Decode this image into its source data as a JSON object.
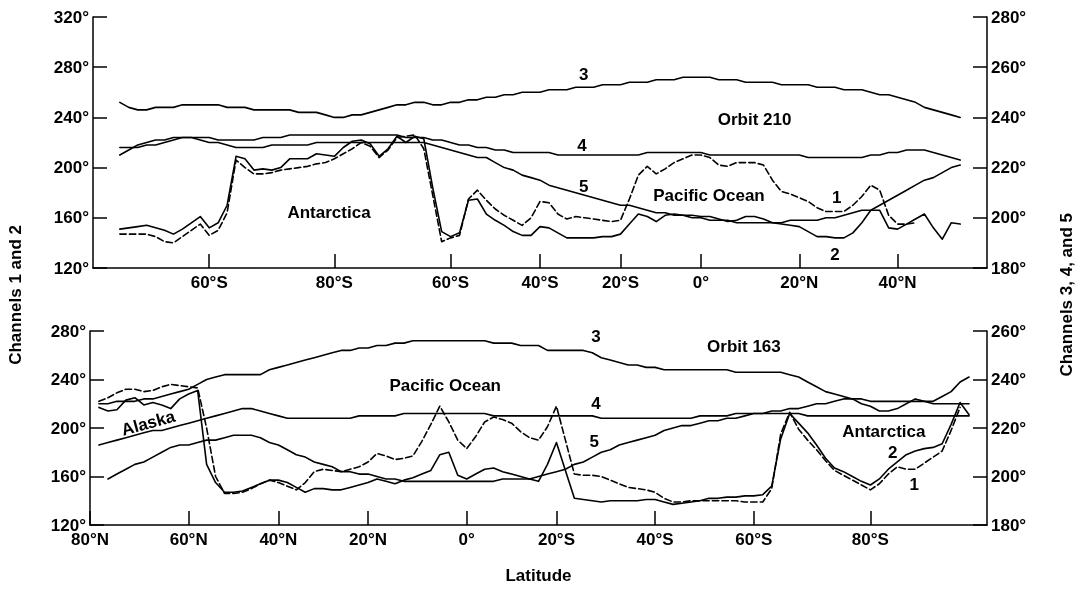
{
  "chart_data": [
    {
      "type": "line",
      "ylabel": "Channels 1 and 2",
      "y2label": "Channels 3, 4, and 5",
      "marker": "none",
      "grid": false,
      "categories": [
        null,
        null,
        null,
        null,
        null,
        null,
        null,
        null,
        null,
        null,
        null,
        null,
        null,
        "60°S",
        null,
        null,
        null,
        null,
        null,
        null,
        null,
        null,
        null,
        null,
        null,
        null,
        null,
        "80°S",
        null,
        null,
        null,
        null,
        null,
        null,
        null,
        null,
        null,
        null,
        null,
        null,
        "60°S",
        null,
        null,
        null,
        null,
        null,
        null,
        null,
        null,
        null,
        "40°S",
        null,
        null,
        null,
        null,
        null,
        null,
        null,
        null,
        "20°S",
        null,
        null,
        null,
        null,
        null,
        null,
        null,
        null,
        "0°",
        null,
        null,
        null,
        null,
        null,
        null,
        null,
        null,
        null,
        null,
        "20°N",
        null,
        null,
        null,
        null,
        null,
        null,
        null,
        null,
        null,
        null,
        "40°N",
        null,
        null,
        null,
        null,
        null,
        null,
        null,
        null,
        null,
        null
      ],
      "ylim": [
        120,
        320
      ],
      "yticks": [
        {
          "value": 120,
          "label": "120°"
        },
        {
          "value": 160,
          "label": "160°"
        },
        {
          "value": 200,
          "label": "200°"
        },
        {
          "value": 240,
          "label": "240°"
        },
        {
          "value": 280,
          "label": "280°"
        },
        {
          "value": 320,
          "label": "320°"
        }
      ],
      "y2lim": [
        180,
        280
      ],
      "y2ticks": [
        {
          "value": 180,
          "label": "180°"
        },
        {
          "value": 200,
          "label": "200°"
        },
        {
          "value": 220,
          "label": "220°"
        },
        {
          "value": 240,
          "label": "240°"
        },
        {
          "value": 260,
          "label": "260°"
        },
        {
          "value": 280,
          "label": "280°"
        }
      ],
      "series": [
        {
          "color": "#000000",
          "line_style": "dashed",
          "values": [
            null,
            null,
            null,
            147,
            147,
            147,
            147,
            145,
            141,
            140,
            145,
            150,
            155,
            146,
            150,
            164,
            206,
            200,
            195,
            195,
            196,
            198,
            199,
            200,
            201,
            203,
            204,
            207,
            211,
            215,
            220,
            217,
            208,
            214,
            224,
            225,
            226,
            215,
            178,
            141,
            144,
            146,
            175,
            182,
            174,
            167,
            162,
            158,
            154,
            160,
            173,
            172,
            163,
            159,
            161,
            160,
            159,
            158,
            157,
            158,
            175,
            194,
            201,
            195,
            199,
            204,
            207,
            210,
            210,
            208,
            202,
            201,
            204,
            204,
            204,
            202,
            190,
            181,
            179,
            176,
            173,
            168,
            165,
            165,
            165,
            170,
            177,
            186,
            182,
            162,
            155,
            155,
            156,
            null,
            null,
            null,
            null,
            null,
            null,
            null,
            null
          ]
        },
        {
          "color": "#000000",
          "line_style": "solid",
          "values": [
            null,
            null,
            null,
            151,
            152,
            153,
            154,
            152,
            150,
            147,
            151,
            156,
            161,
            152,
            156,
            170,
            209,
            207,
            198,
            199,
            198,
            200,
            207,
            207,
            207,
            211,
            210,
            209,
            216,
            221,
            222,
            219,
            209,
            215,
            225,
            220,
            225,
            223,
            184,
            149,
            145,
            148,
            174,
            175,
            163,
            158,
            154,
            149,
            146,
            146,
            153,
            152,
            148,
            144,
            144,
            144,
            144,
            145,
            145,
            147,
            155,
            163,
            161,
            157,
            162,
            163,
            162,
            162,
            161,
            161,
            159,
            157,
            158,
            161,
            161,
            159,
            156,
            155,
            154,
            153,
            149,
            145,
            145,
            144,
            144,
            148,
            156,
            166,
            166,
            152,
            151,
            155,
            159,
            163,
            152,
            143,
            156,
            155,
            null,
            null,
            null
          ]
        },
        {
          "color": "#000000",
          "line_style": "solid",
          "axis": "y2",
          "values": [
            null,
            null,
            null,
            246,
            244,
            243,
            243,
            244,
            244,
            244,
            245,
            245,
            245,
            245,
            245,
            244,
            244,
            244,
            243,
            243,
            243,
            243,
            243,
            242,
            242,
            242,
            241,
            240,
            240,
            241,
            241,
            242,
            243,
            244,
            245,
            245,
            246,
            246,
            245,
            245,
            246,
            246,
            247,
            247,
            248,
            248,
            249,
            249,
            250,
            250,
            250,
            251,
            251,
            251,
            252,
            252,
            252,
            253,
            253,
            253,
            254,
            254,
            254,
            255,
            255,
            255,
            256,
            256,
            256,
            256,
            255,
            255,
            255,
            254,
            254,
            254,
            254,
            253,
            253,
            253,
            253,
            252,
            252,
            252,
            251,
            251,
            251,
            250,
            249,
            249,
            248,
            247,
            246,
            244,
            243,
            242,
            241,
            240,
            null,
            null,
            null
          ]
        },
        {
          "color": "#000000",
          "line_style": "solid",
          "axis": "y2",
          "values": [
            null,
            null,
            null,
            228,
            228,
            228,
            229,
            229,
            230,
            231,
            232,
            232,
            232,
            232,
            231,
            231,
            231,
            231,
            231,
            232,
            232,
            232,
            233,
            233,
            233,
            233,
            233,
            233,
            233,
            233,
            233,
            233,
            233,
            233,
            233,
            232,
            232,
            232,
            231,
            231,
            230,
            229,
            229,
            228,
            228,
            227,
            227,
            226,
            226,
            226,
            226,
            226,
            225,
            225,
            225,
            225,
            225,
            225,
            225,
            225,
            225,
            225,
            226,
            226,
            226,
            226,
            226,
            226,
            226,
            225,
            225,
            225,
            225,
            225,
            225,
            225,
            225,
            225,
            225,
            225,
            224,
            224,
            224,
            224,
            224,
            224,
            224,
            225,
            225,
            226,
            226,
            227,
            227,
            227,
            226,
            225,
            224,
            223,
            null,
            null,
            null
          ]
        },
        {
          "color": "#000000",
          "line_style": "solid",
          "axis": "y2",
          "values": [
            null,
            null,
            null,
            225,
            227,
            229,
            230,
            231,
            231,
            232,
            232,
            232,
            231,
            230,
            230,
            229,
            228,
            228,
            228,
            228,
            229,
            229,
            229,
            229,
            229,
            230,
            230,
            230,
            230,
            230,
            230,
            230,
            230,
            230,
            230,
            230,
            230,
            230,
            229,
            228,
            227,
            226,
            225,
            224,
            224,
            222,
            220,
            219,
            217,
            216,
            215,
            213,
            212,
            211,
            210,
            209,
            208,
            207,
            206,
            205,
            205,
            204,
            203,
            202,
            202,
            201,
            201,
            200,
            200,
            199,
            199,
            199,
            198,
            198,
            198,
            198,
            198,
            198,
            199,
            199,
            199,
            199,
            200,
            200,
            201,
            202,
            203,
            203,
            205,
            207,
            209,
            211,
            213,
            215,
            216,
            218,
            220,
            221,
            null,
            null,
            null
          ]
        }
      ],
      "annotations": [
        "Orbit 210",
        "Antarctica",
        "Pacific Ocean",
        "1",
        "2",
        "3",
        "4",
        "5"
      ]
    },
    {
      "type": "line",
      "xlabel": "Latitude",
      "marker": "none",
      "grid": false,
      "categories": [
        "80°N",
        null,
        null,
        null,
        null,
        null,
        null,
        null,
        null,
        null,
        null,
        "60°N",
        null,
        null,
        null,
        null,
        null,
        null,
        null,
        null,
        null,
        "40°N",
        null,
        null,
        null,
        null,
        null,
        null,
        null,
        null,
        null,
        "20°N",
        null,
        null,
        null,
        null,
        null,
        null,
        null,
        null,
        null,
        null,
        "0°",
        null,
        null,
        null,
        null,
        null,
        null,
        null,
        null,
        null,
        "20°S",
        null,
        null,
        null,
        null,
        null,
        null,
        null,
        null,
        null,
        null,
        "40°S",
        null,
        null,
        null,
        null,
        null,
        null,
        null,
        null,
        null,
        null,
        "60°S",
        null,
        null,
        null,
        null,
        null,
        null,
        null,
        null,
        null,
        null,
        null,
        null,
        "80°S",
        null,
        null,
        null,
        null,
        null,
        null,
        null,
        null,
        null,
        null,
        null,
        null,
        null
      ],
      "ylim": [
        120,
        280
      ],
      "yticks": [
        {
          "value": 120,
          "label": "120°"
        },
        {
          "value": 160,
          "label": "160°"
        },
        {
          "value": 200,
          "label": "200°"
        },
        {
          "value": 240,
          "label": "240°"
        },
        {
          "value": 280,
          "label": "280°"
        }
      ],
      "y2lim": [
        180,
        260
      ],
      "y2ticks": [
        {
          "value": 180,
          "label": "180°"
        },
        {
          "value": 200,
          "label": "200°"
        },
        {
          "value": 220,
          "label": "220°"
        },
        {
          "value": 240,
          "label": "240°"
        },
        {
          "value": 260,
          "label": "260°"
        }
      ],
      "series": [
        {
          "color": "#000000",
          "line_style": "dashed",
          "values": [
            null,
            222,
            225,
            229,
            232,
            232,
            230,
            231,
            234,
            236,
            235,
            234,
            233,
            200,
            160,
            146,
            146,
            147,
            150,
            154,
            157,
            155,
            152,
            149,
            155,
            164,
            166,
            165,
            164,
            166,
            168,
            172,
            179,
            177,
            174,
            175,
            177,
            189,
            203,
            218,
            205,
            190,
            183,
            193,
            205,
            209,
            207,
            204,
            197,
            192,
            190,
            201,
            218,
            190,
            162,
            161,
            161,
            160,
            157,
            154,
            151,
            150,
            149,
            147,
            142,
            139,
            139,
            140,
            140,
            140,
            140,
            140,
            140,
            139,
            139,
            139,
            150,
            195,
            213,
            199,
            190,
            182,
            173,
            165,
            161,
            157,
            153,
            149,
            154,
            162,
            168,
            166,
            166,
            171,
            176,
            181,
            198,
            217,
            null,
            null,
            null
          ]
        },
        {
          "color": "#000000",
          "line_style": "solid",
          "values": [
            null,
            217,
            214,
            215,
            223,
            225,
            219,
            221,
            219,
            216,
            224,
            228,
            231,
            170,
            155,
            147,
            147,
            148,
            151,
            154,
            157,
            157,
            155,
            151,
            147,
            150,
            150,
            149,
            149,
            151,
            153,
            155,
            158,
            156,
            154,
            157,
            159,
            162,
            165,
            178,
            180,
            161,
            158,
            162,
            166,
            167,
            164,
            162,
            160,
            158,
            156,
            170,
            188,
            165,
            142,
            141,
            140,
            139,
            140,
            140,
            140,
            140,
            141,
            141,
            139,
            137,
            138,
            139,
            140,
            142,
            142,
            143,
            143,
            144,
            144,
            145,
            152,
            191,
            212,
            204,
            196,
            186,
            175,
            167,
            164,
            160,
            156,
            153,
            158,
            166,
            172,
            178,
            181,
            183,
            184,
            187,
            203,
            221,
            211,
            null,
            null
          ]
        },
        {
          "color": "#000000",
          "line_style": "solid",
          "axis": "y2",
          "values": [
            null,
            230,
            230,
            231,
            231,
            231,
            232,
            232,
            233,
            234,
            235,
            236,
            238,
            240,
            241,
            242,
            242,
            242,
            242,
            242,
            244,
            245,
            246,
            247,
            248,
            249,
            250,
            251,
            252,
            252,
            253,
            253,
            254,
            254,
            255,
            255,
            256,
            256,
            256,
            256,
            256,
            256,
            256,
            256,
            256,
            255,
            255,
            255,
            254,
            254,
            254,
            252,
            252,
            252,
            252,
            252,
            251,
            249,
            248,
            247,
            246,
            246,
            245,
            245,
            244,
            244,
            244,
            244,
            244,
            244,
            244,
            244,
            243,
            243,
            243,
            243,
            243,
            243,
            242,
            241,
            239,
            237,
            235,
            234,
            233,
            232,
            230,
            229,
            227,
            227,
            228,
            230,
            232,
            231,
            231,
            233,
            235,
            239,
            241,
            null,
            null
          ]
        },
        {
          "color": "#000000",
          "line_style": "solid",
          "axis": "y2",
          "values": [
            null,
            213,
            214,
            215,
            216,
            217,
            218,
            219,
            219,
            220,
            221,
            222,
            223,
            224,
            225,
            226,
            227,
            228,
            228,
            227,
            226,
            225,
            224,
            224,
            224,
            224,
            224,
            224,
            224,
            224,
            225,
            225,
            225,
            225,
            225,
            226,
            226,
            226,
            226,
            226,
            226,
            226,
            226,
            226,
            226,
            225,
            225,
            225,
            225,
            225,
            225,
            225,
            225,
            225,
            225,
            225,
            225,
            224,
            224,
            224,
            224,
            224,
            224,
            224,
            224,
            224,
            224,
            224,
            225,
            225,
            225,
            225,
            226,
            226,
            226,
            226,
            226,
            226,
            226,
            226,
            225,
            225,
            225,
            225,
            225,
            225,
            225,
            225,
            225,
            225,
            225,
            225,
            225,
            225,
            225,
            225,
            225,
            225,
            225,
            null,
            null
          ]
        },
        {
          "color": "#000000",
          "line_style": "solid",
          "axis": "y2",
          "values": [
            null,
            null,
            199,
            201,
            203,
            205,
            206,
            208,
            210,
            212,
            213,
            213,
            214,
            215,
            215,
            216,
            217,
            217,
            217,
            216,
            214,
            213,
            211,
            209,
            208,
            206,
            205,
            204,
            202,
            202,
            201,
            201,
            200,
            199,
            199,
            198,
            198,
            198,
            198,
            198,
            198,
            198,
            198,
            198,
            198,
            198,
            199,
            199,
            199,
            199,
            200,
            201,
            202,
            203,
            205,
            206,
            208,
            210,
            211,
            213,
            214,
            215,
            216,
            217,
            219,
            220,
            221,
            221,
            222,
            223,
            223,
            224,
            224,
            225,
            226,
            226,
            227,
            227,
            228,
            228,
            229,
            230,
            230,
            231,
            232,
            232,
            232,
            231,
            231,
            231,
            231,
            231,
            231,
            231,
            230,
            230,
            230,
            230,
            230,
            null,
            null
          ]
        }
      ],
      "annotations": [
        "Orbit 163",
        "Pacific Ocean",
        "Alaska",
        "Antarctica",
        "1",
        "2",
        "3",
        "4",
        "5"
      ]
    }
  ]
}
